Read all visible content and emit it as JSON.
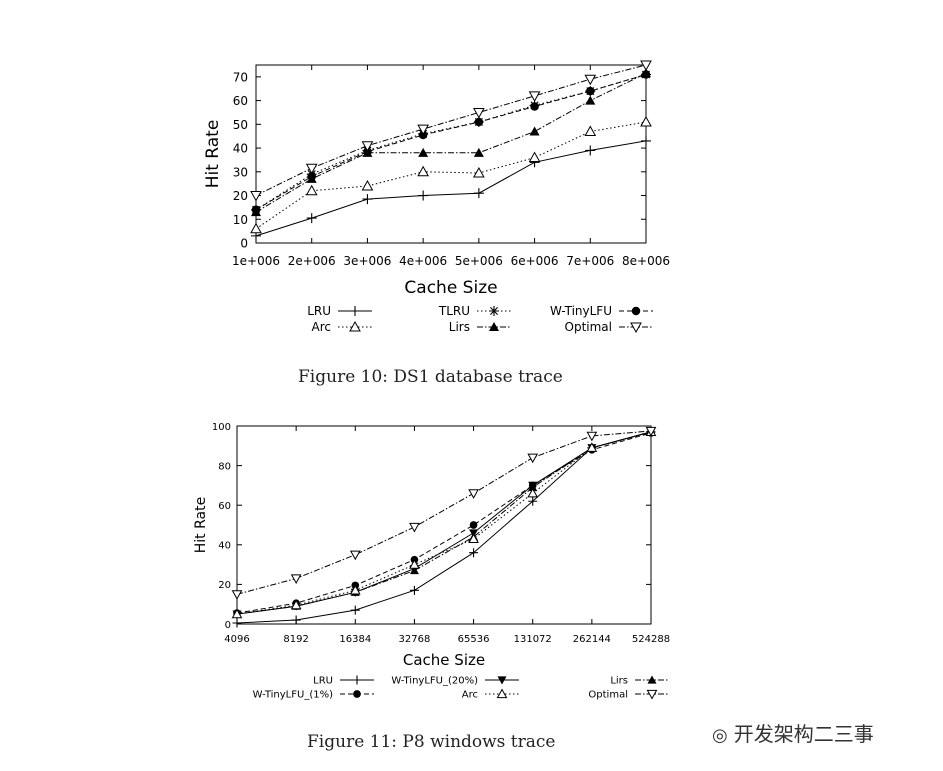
{
  "figures": [
    {
      "caption": "Figure 10: DS1 database trace"
    },
    {
      "caption": "Figure 11: P8 windows trace"
    }
  ],
  "watermark": {
    "text": "开发架构二三事",
    "icon": "wechat-icon"
  },
  "chart_data": [
    {
      "type": "line",
      "title": "",
      "xlabel": "Cache Size",
      "ylabel": "Hit Rate",
      "categories": [
        "1e+006",
        "2e+006",
        "3e+006",
        "4e+006",
        "5e+006",
        "6e+006",
        "7e+006",
        "8e+006"
      ],
      "ylim": [
        0,
        75
      ],
      "yticks": [
        0,
        10,
        20,
        30,
        40,
        50,
        60,
        70
      ],
      "legend_placement": "bottom",
      "series": [
        {
          "name": "LRU",
          "marker": "plus",
          "dash": "solid",
          "values": [
            3,
            10.5,
            18.5,
            20,
            21,
            34,
            39,
            43
          ]
        },
        {
          "name": "TLRU",
          "marker": "star",
          "dash": "dotted",
          "values": [
            14,
            29,
            39,
            46,
            51,
            58,
            64,
            71
          ]
        },
        {
          "name": "W-TinyLFU",
          "marker": "circle",
          "dash": "dashed",
          "values": [
            14,
            28,
            38.5,
            45.5,
            51,
            57.5,
            64,
            71
          ]
        },
        {
          "name": "Arc",
          "marker": "triangle-up-open",
          "dash": "dotted",
          "values": [
            6,
            22,
            24,
            30,
            29.5,
            36,
            47,
            51
          ]
        },
        {
          "name": "Lirs",
          "marker": "triangle-up",
          "dash": "dashdot",
          "values": [
            13,
            27,
            38,
            38,
            38,
            47,
            60,
            71.5
          ]
        },
        {
          "name": "Optimal",
          "marker": "triangle-down-open",
          "dash": "dashdot",
          "values": [
            20,
            31.5,
            41,
            48,
            55,
            62,
            69,
            75
          ]
        }
      ]
    },
    {
      "type": "line",
      "title": "",
      "xlabel": "Cache Size",
      "ylabel": "Hit Rate",
      "categories": [
        "4096",
        "8192",
        "16384",
        "32768",
        "65536",
        "131072",
        "262144",
        "524288"
      ],
      "ylim": [
        0,
        100
      ],
      "yticks": [
        0,
        20,
        40,
        60,
        80,
        100
      ],
      "legend_placement": "bottom",
      "series": [
        {
          "name": "LRU",
          "marker": "plus",
          "dash": "solid",
          "values": [
            0.5,
            2,
            7,
            17,
            36,
            62,
            89,
            97
          ]
        },
        {
          "name": "W-TinyLFU_(20%)",
          "marker": "triangle-down",
          "dash": "solid",
          "values": [
            5,
            9,
            16,
            28,
            46,
            70,
            89,
            97
          ]
        },
        {
          "name": "Lirs",
          "marker": "triangle-up",
          "dash": "dashdot",
          "values": [
            5,
            9,
            16,
            27,
            44,
            69,
            89,
            97
          ]
        },
        {
          "name": "W-TinyLFU_(1%)",
          "marker": "circle",
          "dash": "dashed",
          "values": [
            5.5,
            10.5,
            19.5,
            32.5,
            50,
            70,
            88,
            96.5
          ]
        },
        {
          "name": "Arc",
          "marker": "triangle-up-open",
          "dash": "dotted",
          "values": [
            5,
            9.5,
            17,
            30,
            43,
            66,
            89,
            97
          ]
        },
        {
          "name": "Optimal",
          "marker": "triangle-down-open",
          "dash": "dashdot",
          "values": [
            15,
            23,
            35,
            49,
            66,
            84,
            95,
            97.5
          ]
        }
      ]
    }
  ]
}
